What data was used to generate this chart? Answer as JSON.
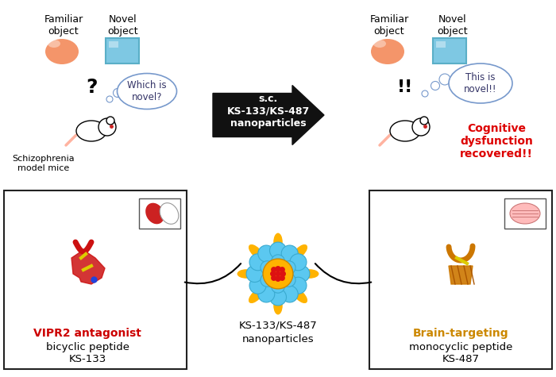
{
  "title": "",
  "bg_color": "#ffffff",
  "top_left": {
    "familiar_label": "Familiar\nobject",
    "novel_label": "Novel\nobject",
    "familiar_color": "#F4956A",
    "novel_color": "#7EC8E3",
    "novel_border": "#5AAFC7",
    "question_mark": "?",
    "thought_text": "Which is\nnovel?",
    "mouse_label": "Schizophrenia\nmodel mice"
  },
  "top_right": {
    "familiar_label": "Familiar\nobject",
    "novel_label": "Novel\nobject",
    "familiar_color": "#F4956A",
    "novel_color": "#7EC8E3",
    "novel_border": "#5AAFC7",
    "exclaim": "!!",
    "thought_text": "This is\nnovel!!",
    "recovery_text": "Cognitive\ndysfunction\nrecovered!!",
    "recovery_color": "#DD0000"
  },
  "arrow": {
    "text1": "s.c.",
    "text2": "KS-133/KS-487",
    "text3": "nanoparticles",
    "color": "#111111"
  },
  "bottom_left": {
    "title_red": "VIPR2 antagonist",
    "title_black1": "bicyclic peptide",
    "title_black2": "KS-133",
    "peptide_color": "#CC0000",
    "box_color": "#1a1a1a"
  },
  "bottom_center": {
    "title1": "KS-133/KS-487",
    "title2": "nanoparticles",
    "core_color": "#FFB300",
    "drug_colors_inner": [
      "#DD2222",
      "#DD2222",
      "#DD2222",
      "#DD2222",
      "#DD2222",
      "#DD2222",
      "#DD2222"
    ],
    "shell_color": "#5BC8F0",
    "shell_border": "#3AAAD0",
    "petal_color": "#FFB300"
  },
  "bottom_right": {
    "title_red": "Brain-targeting",
    "title_black1": "monocyclic peptide",
    "title_black2": "KS-487",
    "peptide_color": "#CC8800",
    "box_color": "#1a1a1a"
  }
}
